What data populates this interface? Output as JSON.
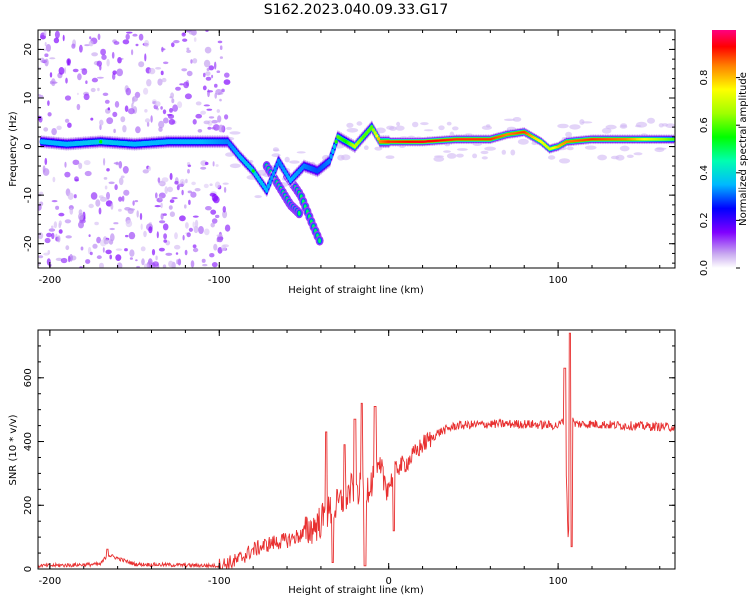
{
  "title": "S162.2023.040.09.33.G17",
  "colors": {
    "snr_line": "#e83030",
    "colormap": [
      "#ffffff",
      "#c8a8f0",
      "#8000ff",
      "#0000ff",
      "#00b8ff",
      "#00ffb0",
      "#00ff00",
      "#a0ff00",
      "#ffff00",
      "#ff8000",
      "#ff0000",
      "#ff0080"
    ]
  },
  "chart_data": [
    {
      "type": "heatmap",
      "xlabel": "Height of straight line (km)",
      "ylabel": "Frequency (Hz)",
      "xlim": [
        -207,
        169
      ],
      "ylim": [
        -25,
        24
      ],
      "xticks": [
        -200,
        -100,
        100
      ],
      "yticks": [
        -20,
        -10,
        0,
        10,
        20
      ],
      "colorbar": {
        "label": "Normalized spectral amplitude",
        "range": [
          0.0,
          1.0
        ],
        "ticks": [
          0.0,
          0.2,
          0.4,
          0.6,
          0.8
        ]
      },
      "ridge": {
        "x": [
          -205,
          -190,
          -170,
          -150,
          -130,
          -110,
          -95,
          -88,
          -80,
          -72,
          -65,
          -58,
          -50,
          -42,
          -35,
          -30,
          -25,
          -20,
          -15,
          -10,
          -5,
          0,
          20,
          40,
          60,
          70,
          80,
          85,
          90,
          95,
          100,
          105,
          120,
          140,
          168
        ],
        "freq": [
          1,
          0.5,
          1,
          0.5,
          1,
          1,
          1,
          -2,
          -5,
          -9,
          -3,
          -7,
          -4,
          -5,
          -3,
          2,
          1,
          0,
          2,
          4,
          1,
          1,
          1,
          1.5,
          1.5,
          2.5,
          3,
          2,
          1,
          -0.5,
          0,
          1,
          1.5,
          1.5,
          1.5
        ],
        "amplitude": [
          0.5,
          0.5,
          0.55,
          0.5,
          0.5,
          0.5,
          0.45,
          0.5,
          0.55,
          0.5,
          0.45,
          0.5,
          0.45,
          0.4,
          0.45,
          0.6,
          0.55,
          0.7,
          0.6,
          0.6,
          0.85,
          0.9,
          0.95,
          0.9,
          0.9,
          0.85,
          0.9,
          0.8,
          0.75,
          0.7,
          0.8,
          0.85,
          0.9,
          0.85,
          0.6
        ]
      },
      "branches": [
        {
          "x": [
            -72,
            -65,
            -58,
            -52
          ],
          "freq": [
            -4,
            -8,
            -12,
            -14
          ]
        },
        {
          "x": [
            -60,
            -52,
            -45,
            -40
          ],
          "freq": [
            -6,
            -10,
            -16,
            -20
          ]
        }
      ]
    },
    {
      "type": "line",
      "xlabel": "Height of straight line (km)",
      "ylabel": "SNR (10 * v/v)",
      "xlim": [
        -207,
        169
      ],
      "ylim": [
        0,
        750
      ],
      "xticks": [
        -200,
        -100,
        0,
        100
      ],
      "yticks": [
        0,
        200,
        400,
        600
      ],
      "series": [
        {
          "x": [
            -207,
            -190,
            -170,
            -166,
            -150,
            -120,
            -100,
            -90,
            -80,
            -70,
            -60,
            -50,
            -40,
            -35,
            -30,
            -25,
            -20,
            -15,
            -10,
            -5,
            0,
            5,
            10,
            20,
            30,
            40,
            60,
            80,
            100,
            104,
            106,
            108,
            110,
            120,
            140,
            169
          ],
          "y": [
            10,
            12,
            15,
            45,
            15,
            12,
            10,
            25,
            60,
            80,
            90,
            110,
            150,
            180,
            200,
            230,
            260,
            240,
            280,
            300,
            260,
            320,
            330,
            390,
            430,
            450,
            455,
            455,
            450,
            470,
            80,
            470,
            455,
            455,
            450,
            445
          ]
        }
      ],
      "spikes": [
        {
          "x": -166,
          "y": 62
        },
        {
          "x": -37,
          "y": 430
        },
        {
          "x": -33,
          "y": 20
        },
        {
          "x": -26,
          "y": 390
        },
        {
          "x": -20,
          "y": 470
        },
        {
          "x": -16,
          "y": 520
        },
        {
          "x": -14,
          "y": 10
        },
        {
          "x": -8,
          "y": 510
        },
        {
          "x": 3,
          "y": 120
        },
        {
          "x": 104,
          "y": 630
        },
        {
          "x": 107,
          "y": 740
        },
        {
          "x": 108,
          "y": 70
        }
      ]
    }
  ]
}
